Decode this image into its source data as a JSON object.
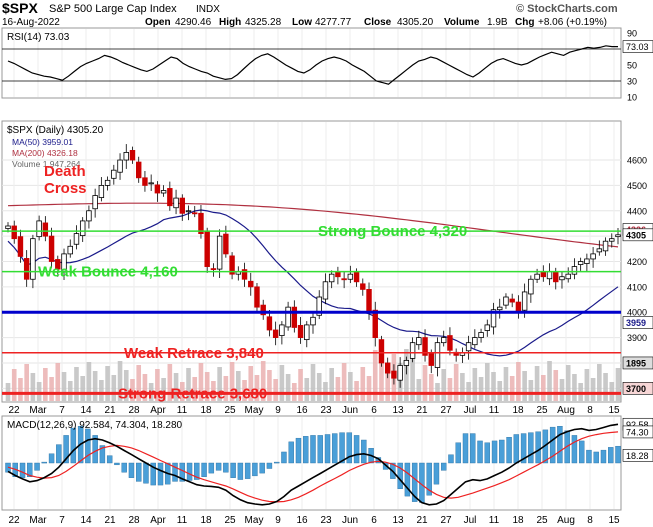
{
  "header": {
    "ticker": "$SPX",
    "name": "S&P 500 Large Cap Index",
    "exchange": "INDX",
    "date": "16-Aug-2022",
    "open_label": "Open",
    "open": "4290.46",
    "high_label": "High",
    "high": "4325.28",
    "low_label": "Low",
    "low": "4277.77",
    "close_label": "Close",
    "close": "4305.20",
    "volume_label": "Volume",
    "volume": "1.9B",
    "chg_label": "Chg",
    "chg": "+8.06 (+0.19%)",
    "watermark": "© StockCharts.com"
  },
  "colors": {
    "up_candle": "#ffffff",
    "down_candle": "#cc0000",
    "ma50": "#1a1a8a",
    "ma200": "#b03040",
    "strong_bounce": "#33dd33",
    "weak_bounce": "#33dd33",
    "base_line": "#0000cc",
    "retrace": "#ee2222",
    "macd": "#000000",
    "signal": "#ee2222",
    "histogram": "#4a9fd8"
  },
  "chart_data": [
    {
      "type": "line",
      "panel": "rsi",
      "legend": "RSI(14) 73.03",
      "ylim": [
        10,
        95
      ],
      "ticks": [
        90,
        70,
        50,
        30,
        10
      ],
      "last_label": "73.03",
      "levels": [
        70,
        30
      ],
      "series": [
        {
          "name": "RSI(14)",
          "values": [
            55,
            52,
            48,
            44,
            40,
            38,
            36,
            35,
            33,
            31,
            36,
            42,
            48,
            52,
            55,
            58,
            62,
            60,
            57,
            53,
            50,
            47,
            44,
            42,
            45,
            50,
            55,
            60,
            58,
            52,
            48,
            45,
            42,
            40,
            36,
            34,
            32,
            33,
            38,
            45,
            52,
            58,
            62,
            64,
            60,
            55,
            50,
            46,
            42,
            40,
            44,
            50,
            55,
            58,
            60,
            58,
            55,
            50,
            46,
            42,
            36,
            30,
            28,
            26,
            32,
            38,
            44,
            50,
            55,
            57,
            60,
            58,
            54,
            50,
            46,
            42,
            38,
            35,
            40,
            46,
            52,
            56,
            58,
            55,
            52,
            50,
            52,
            56,
            60,
            63,
            66,
            64,
            62,
            66,
            68,
            70,
            72,
            71,
            72,
            74,
            73,
            73.03
          ]
        }
      ]
    },
    {
      "type": "line",
      "panel": "price",
      "legend_title": "$SPX (Daily) 4305.20",
      "legend_ma50": "MA(50) 3959.01",
      "legend_ma200": "MA(200) 4326.18",
      "legend_volume": "Volume 1,947,264",
      "ylim": [
        3650,
        4750
      ],
      "ticks": [
        4600,
        4500,
        4400,
        4300,
        4200,
        4100,
        4000,
        3900,
        3800,
        3700
      ],
      "price_label": "4305",
      "ma200_label": "4326",
      "ma50_label": "3959",
      "volume_label_top": "1895",
      "volume_label_bottom": "3700",
      "x_ticks": [
        "22",
        "Mar",
        "7",
        "14",
        "21",
        "28",
        "Apr",
        "11",
        "18",
        "25",
        "May",
        "9",
        "16",
        "23",
        "Jun",
        "6",
        "13",
        "21",
        "27",
        "Jul",
        "11",
        "18",
        "25",
        "Aug",
        "8",
        "15"
      ],
      "close": [
        4340,
        4290,
        4220,
        4130,
        4290,
        4360,
        4300,
        4200,
        4170,
        4230,
        4260,
        4310,
        4360,
        4400,
        4460,
        4500,
        4520,
        4560,
        4600,
        4630,
        4600,
        4530,
        4500,
        4510,
        4470,
        4480,
        4420,
        4450,
        4390,
        4400,
        4390,
        4310,
        4180,
        4170,
        4300,
        4230,
        4150,
        4160,
        4130,
        4100,
        4020,
        3990,
        3930,
        3900,
        3950,
        4020,
        3940,
        3900,
        3950,
        3980,
        4060,
        4120,
        4150,
        4140,
        4130,
        4150,
        4120,
        4090,
        4000,
        3900,
        3800,
        3760,
        3740,
        3790,
        3810,
        3880,
        3900,
        3830,
        3790,
        3880,
        3900,
        3850,
        3830,
        3840,
        3880,
        3900,
        3920,
        3950,
        4010,
        4020,
        4060,
        4040,
        4000,
        4080,
        4130,
        4150,
        4140,
        4160,
        4120,
        4140,
        4150,
        4180,
        4200,
        4210,
        4230,
        4250,
        4280,
        4290,
        4305.2
      ],
      "events": [
        "Death",
        "Cross"
      ],
      "levels": [
        {
          "label": "Strong Bounce 4,320",
          "value": 4320
        },
        {
          "label": "Weak Bounce 4,160",
          "value": 4160
        },
        {
          "label": "",
          "value": 4000
        },
        {
          "label": "Weak Retrace 3,840",
          "value": 3840
        },
        {
          "label": "Strong Retrace 3,680",
          "value": 3680
        }
      ]
    },
    {
      "type": "line",
      "panel": "macd",
      "legend": "MACD(12,26,9) 92.584, 74.304, 18.280",
      "macd_label": "92.58",
      "signal_label": "74.30",
      "hist_label": "18.28",
      "ylim": [
        -110,
        110
      ],
      "series": [
        {
          "name": "MACD",
          "values": [
            -20,
            -30,
            -38,
            -45,
            -42,
            -35,
            -25,
            -10,
            10,
            30,
            45,
            55,
            58,
            55,
            48,
            40,
            30,
            20,
            10,
            0,
            -10,
            -18,
            -25,
            -30,
            -38,
            -45,
            -52,
            -55,
            -56,
            -58,
            -65,
            -78,
            -88,
            -95,
            -98,
            -100,
            -98,
            -92,
            -80,
            -65,
            -55,
            -45,
            -35,
            -25,
            -15,
            -5,
            5,
            15,
            20,
            22,
            18,
            10,
            -5,
            -20,
            -40,
            -60,
            -80,
            -95,
            -100,
            -98,
            -90,
            -75,
            -60,
            -45,
            -40,
            -42,
            -38,
            -30,
            -22,
            -12,
            0,
            10,
            20,
            30,
            42,
            55,
            68,
            75,
            80,
            82,
            78,
            80,
            85,
            90,
            92.584
          ]
        },
        {
          "name": "Signal",
          "values": [
            -10,
            -15,
            -22,
            -30,
            -34,
            -36,
            -35,
            -30,
            -20,
            -8,
            5,
            18,
            28,
            36,
            40,
            42,
            40,
            36,
            30,
            22,
            14,
            6,
            -2,
            -10,
            -18,
            -26,
            -34,
            -40,
            -45,
            -50,
            -55,
            -62,
            -70,
            -78,
            -84,
            -89,
            -92,
            -93,
            -92,
            -88,
            -82,
            -74,
            -65,
            -55,
            -46,
            -37,
            -28,
            -18,
            -10,
            -3,
            2,
            4,
            2,
            -3,
            -12,
            -24,
            -38,
            -52,
            -65,
            -75,
            -82,
            -84,
            -82,
            -77,
            -72,
            -66,
            -60,
            -54,
            -47,
            -40,
            -31,
            -22,
            -13,
            -4,
            6,
            16,
            28,
            40,
            50,
            58,
            64,
            68,
            71,
            73,
            74.304
          ]
        }
      ]
    }
  ]
}
